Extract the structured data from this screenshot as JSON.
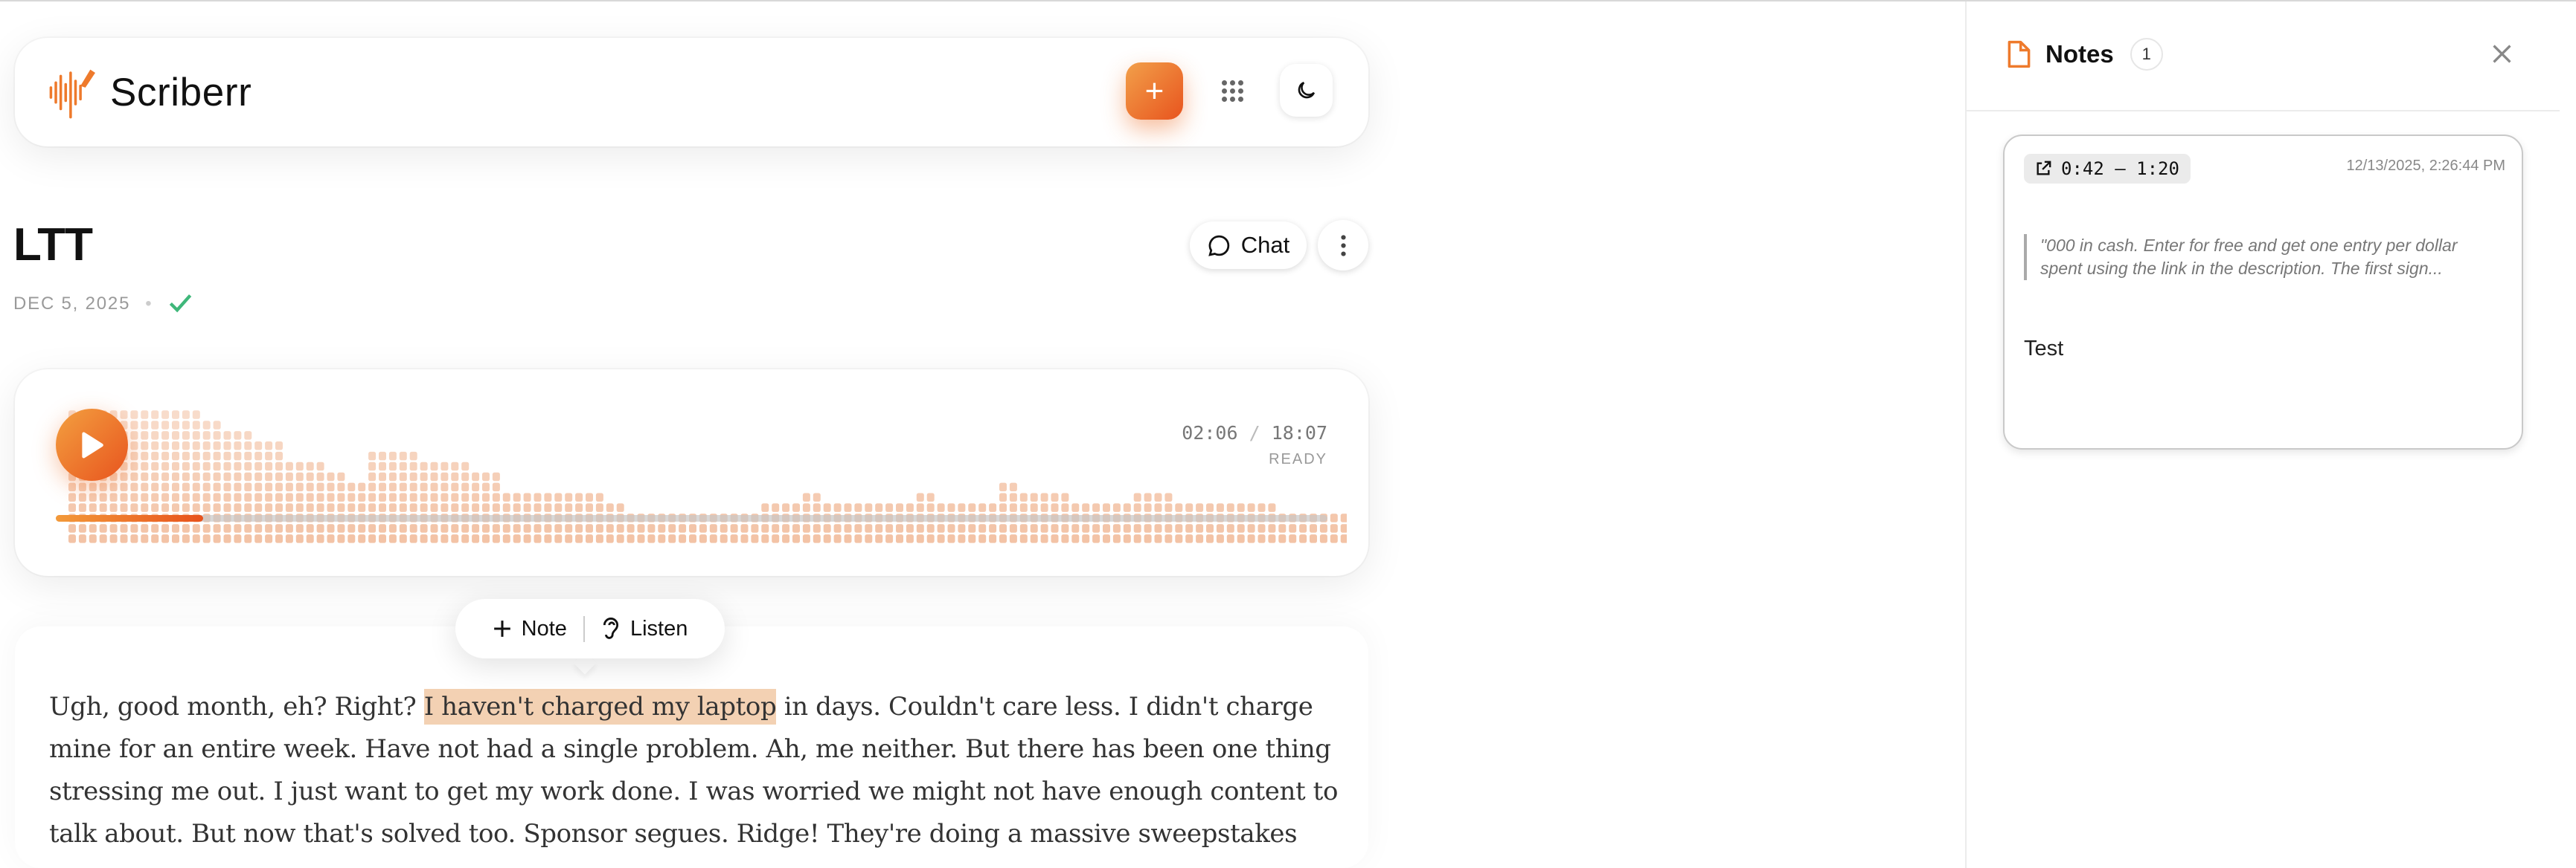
{
  "app": {
    "name": "Scriberr"
  },
  "header": {
    "add_label": "+",
    "icons": [
      "plus-icon",
      "grid-icon",
      "moon-icon"
    ]
  },
  "recording": {
    "title": "LTT",
    "date": "DEC 5, 2025",
    "separator": "•",
    "status_icon": "check-icon",
    "chat_label": "Chat"
  },
  "player": {
    "current_time": "02:06",
    "time_separator": "/",
    "duration": "18:07",
    "status": "READY",
    "progress": 0.116,
    "accent": "#e8541e",
    "wave_color": "#f3c3a6"
  },
  "popover": {
    "note_label": "Note",
    "listen_label": "Listen"
  },
  "transcript": {
    "before": "Ugh, good month, eh? Right? ",
    "highlight": "I haven't charged my laptop",
    "after": " in days. Couldn't care less. I didn't charge mine for an entire week. Have not had a single problem. Ah, me neither. But there has been one thing stressing me out. I just want to get my work done. I was worried we might not have enough content to talk about. But now that's solved too. Sponsor segues. Ridge! They're doing a massive sweepstakes"
  },
  "notes": {
    "title": "Notes",
    "count": "1",
    "items": [
      {
        "range": "0:42 – 1:20",
        "timestamp": "12/13/2025, 2:26:44 PM",
        "quote_line1": "\"000 in cash. Enter for free and get one entry per dollar",
        "quote_line2": "spent using the link in the description. The first sign...",
        "body": "Test"
      }
    ]
  }
}
